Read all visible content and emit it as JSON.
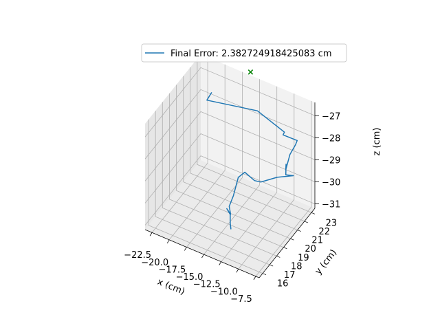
{
  "chart_data": {
    "type": "line",
    "projection": "3d",
    "title": "",
    "xlabel": "x (cm)",
    "ylabel": "y (cm)",
    "zlabel": "z (cm)",
    "xlim": [
      -23.5,
      -7.0
    ],
    "ylim": [
      15.5,
      23.5
    ],
    "zlim": [
      -31.2,
      -26.4
    ],
    "x_ticks": [
      -22.5,
      -20.0,
      -17.5,
      -15.0,
      -12.5,
      -10.0,
      -7.5
    ],
    "x_tick_labels": [
      "−22.5",
      "−20.0",
      "−17.5",
      "−15.0",
      "−12.5",
      "−10.0",
      "−7.5"
    ],
    "y_ticks": [
      16,
      17,
      18,
      19,
      20,
      21,
      22,
      23
    ],
    "y_tick_labels": [
      "16",
      "17",
      "18",
      "19",
      "20",
      "21",
      "22",
      "23"
    ],
    "z_ticks": [
      -31,
      -30,
      -29,
      -28,
      -27
    ],
    "z_tick_labels": [
      "−31",
      "−30",
      "−29",
      "−28",
      "−27"
    ],
    "grid": true,
    "legend": {
      "placement": "top-center",
      "entries": [
        "Final Error: 2.382724918425083 cm"
      ]
    },
    "series": [
      {
        "name": "Final Error: 2.382724918425083 cm",
        "color": "#1f77b4",
        "points": [
          {
            "x": -13.2,
            "y": 17.6,
            "z": -30.65
          },
          {
            "x": -13.4,
            "y": 17.7,
            "z": -30.45
          },
          {
            "x": -13.6,
            "y": 17.9,
            "z": -30.15
          },
          {
            "x": -14.1,
            "y": 17.9,
            "z": -29.95
          },
          {
            "x": -13.5,
            "y": 17.85,
            "z": -30.1
          },
          {
            "x": -13.85,
            "y": 18.0,
            "z": -29.85
          },
          {
            "x": -13.75,
            "y": 18.5,
            "z": -29.55
          },
          {
            "x": -13.85,
            "y": 19.3,
            "z": -29.05
          },
          {
            "x": -13.3,
            "y": 19.7,
            "z": -28.9
          },
          {
            "x": -12.0,
            "y": 19.8,
            "z": -29.15
          },
          {
            "x": -11.3,
            "y": 20.0,
            "z": -29.2
          },
          {
            "x": -9.95,
            "y": 21.0,
            "z": -29.2
          },
          {
            "x": -9.0,
            "y": 22.4,
            "z": -29.55
          },
          {
            "x": -9.8,
            "y": 22.1,
            "z": -29.5
          },
          {
            "x": -9.35,
            "y": 21.7,
            "z": -28.8
          },
          {
            "x": -9.65,
            "y": 21.95,
            "z": -29.2
          },
          {
            "x": -9.1,
            "y": 22.0,
            "z": -28.45
          },
          {
            "x": -9.25,
            "y": 22.95,
            "z": -28.4
          },
          {
            "x": -9.05,
            "y": 23.0,
            "z": -28.2
          },
          {
            "x": -10.5,
            "y": 22.4,
            "z": -27.9
          },
          {
            "x": -10.3,
            "y": 22.4,
            "z": -27.75
          },
          {
            "x": -14.2,
            "y": 22.4,
            "z": -27.3
          },
          {
            "x": -20.3,
            "y": 21.2,
            "z": -27.15
          },
          {
            "x": -19.4,
            "y": 21.0,
            "z": -26.6
          }
        ]
      },
      {
        "name": "",
        "color": "#008000",
        "marker": "x",
        "points": [
          {
            "x": -16.2,
            "y": 23.4,
            "z": -26.2
          }
        ]
      }
    ]
  }
}
